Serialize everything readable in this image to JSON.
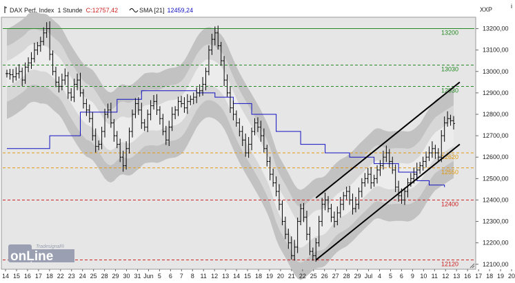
{
  "header": {
    "instrument": "DAX Perf. Index",
    "interval": "1 Stunde",
    "close_label": "C:",
    "close_value": "12757,42",
    "indicator_label": "SMA [21]",
    "indicator_value": "12459,24",
    "axis_unit": "XXP",
    "corner_mark": "i"
  },
  "logo": {
    "sub": "Tradesignal®",
    "main": "onLine"
  },
  "colors": {
    "background": "#ffffff",
    "plot_background": "#e6e6e6",
    "band_outer": "#c2c2c2",
    "band_inner": "#d7d7d7",
    "band_core": "#ececec",
    "candles": "#000000",
    "sma": "#1010c0",
    "resistance_green": "#228822",
    "level_orange": "#e09a10",
    "level_red": "#cc2020",
    "channel": "#000000",
    "logo": "#9aa0b2"
  },
  "chart_data": {
    "type": "candlestick",
    "title": "DAX Perf. Index",
    "interval": "1 Stunde",
    "ylim": [
      12080,
      13250
    ],
    "y_ticks": [
      12100,
      12200,
      12300,
      12400,
      12500,
      12600,
      12700,
      12800,
      12900,
      13000,
      13100,
      13200
    ],
    "y_tick_labels": [
      "12100,00",
      "12200,00",
      "12300,00",
      "12400,00",
      "12500,00",
      "12600,00",
      "12700,00",
      "12800,00",
      "12900,00",
      "13000,00",
      "13100,00",
      "13200,00"
    ],
    "x_tick_labels": [
      "14",
      "15",
      "16",
      "17",
      "18",
      "22",
      "23",
      "24",
      "25",
      "28",
      "29",
      "30",
      "31",
      "Jun",
      "5",
      "6",
      "7",
      "8",
      "11",
      "12",
      "13",
      "14",
      "15",
      "18",
      "19",
      "20",
      "21",
      "22",
      "25",
      "26",
      "27",
      "28",
      "29",
      "Jul",
      "4",
      "5",
      "6",
      "9",
      "10",
      "11",
      "12",
      "13",
      "16",
      "17",
      "18",
      "19",
      "20"
    ],
    "close_series": [
      12990,
      12985,
      12975,
      12990,
      13000,
      12960,
      13020,
      13040,
      13060,
      13100,
      13120,
      13140,
      13180,
      13200,
      13080,
      13000,
      12950,
      12930,
      12960,
      12980,
      12900,
      12880,
      12940,
      12960,
      12900,
      12850,
      12820,
      12780,
      12700,
      12650,
      12660,
      12720,
      12800,
      12820,
      12760,
      12700,
      12660,
      12600,
      12560,
      12640,
      12720,
      12800,
      12850,
      12820,
      12760,
      12740,
      12800,
      12840,
      12860,
      12820,
      12780,
      12720,
      12680,
      12740,
      12800,
      12820,
      12860,
      12850,
      12830,
      12860,
      12870,
      12880,
      12900,
      12910,
      12940,
      13000,
      13100,
      13150,
      13180,
      13120,
      13050,
      12960,
      12900,
      12830,
      12800,
      12760,
      12720,
      12680,
      12620,
      12660,
      12720,
      12760,
      12740,
      12700,
      12640,
      12580,
      12520,
      12480,
      12440,
      12380,
      12300,
      12240,
      12200,
      12140,
      12180,
      12300,
      12360,
      12320,
      12240,
      12160,
      12140,
      12200,
      12300,
      12380,
      12400,
      12360,
      12320,
      12300,
      12340,
      12380,
      12420,
      12440,
      12400,
      12360,
      12380,
      12440,
      12480,
      12500,
      12520,
      12480,
      12500,
      12540,
      12560,
      12600,
      12620,
      12580,
      12540,
      12460,
      12420,
      12400,
      12440,
      12480,
      12500,
      12520,
      12540,
      12560,
      12580,
      12600,
      12620,
      12640,
      12620,
      12600,
      12700,
      12760,
      12780,
      12770,
      12757
    ],
    "sma": {
      "name": "SMA [21]",
      "points": [
        [
          0,
          12640
        ],
        [
          14,
          12700
        ],
        [
          24,
          12810
        ],
        [
          36,
          12870
        ],
        [
          44,
          12910
        ],
        [
          54,
          12910
        ],
        [
          62,
          12900
        ],
        [
          68,
          12880
        ],
        [
          74,
          12850
        ],
        [
          80,
          12800
        ],
        [
          88,
          12720
        ],
        [
          96,
          12660
        ],
        [
          104,
          12620
        ],
        [
          112,
          12600
        ],
        [
          120,
          12570
        ],
        [
          128,
          12530
        ],
        [
          134,
          12490
        ],
        [
          138,
          12470
        ],
        [
          143,
          12460
        ]
      ]
    },
    "levels": [
      {
        "value": 13200,
        "label": "13200",
        "color": "#228822",
        "style": "solid"
      },
      {
        "value": 13030,
        "label": "13030",
        "color": "#228822",
        "style": "dashed"
      },
      {
        "value": 12930,
        "label": "12930",
        "color": "#228822",
        "style": "dashed"
      },
      {
        "value": 12620,
        "label": "12620",
        "color": "#e09a10",
        "style": "dashed"
      },
      {
        "value": 12550,
        "label": "12550",
        "color": "#e09a10",
        "style": "dashed"
      },
      {
        "value": 12400,
        "label": "12400",
        "color": "#cc2020",
        "style": "dashed"
      },
      {
        "value": 12120,
        "label": "12120",
        "color": "#cc2020",
        "style": "dashed"
      }
    ],
    "channel": {
      "lower": [
        [
          101,
          12120
        ],
        [
          148,
          12660
        ]
      ],
      "upper": [
        [
          101,
          12410
        ],
        [
          148,
          12950
        ]
      ]
    },
    "current_value": 12757.42
  }
}
